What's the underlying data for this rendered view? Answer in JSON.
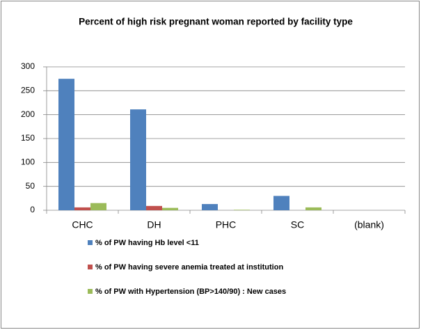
{
  "chart_data": {
    "type": "bar",
    "title": "Percent of high risk pregnant woman reported by facility type",
    "categories": [
      "CHC",
      "DH",
      "PHC",
      "SC",
      "(blank)"
    ],
    "series": [
      {
        "name": "% of PW having Hb level <11",
        "color": "#4f81bd",
        "values": [
          275,
          211,
          13,
          30,
          null
        ]
      },
      {
        "name": "% of PW having severe anemia treated at institution",
        "color": "#c0504d",
        "values": [
          6,
          9,
          0,
          0,
          null
        ]
      },
      {
        "name": "% of PW with Hypertension (BP>140/90) : New cases",
        "color": "#9bbb59",
        "values": [
          15,
          5,
          1,
          6,
          null
        ]
      }
    ],
    "ylim": [
      0,
      300
    ],
    "yticks": [
      0,
      50,
      100,
      150,
      200,
      250,
      300
    ],
    "grid": true,
    "legend": "bottom"
  }
}
